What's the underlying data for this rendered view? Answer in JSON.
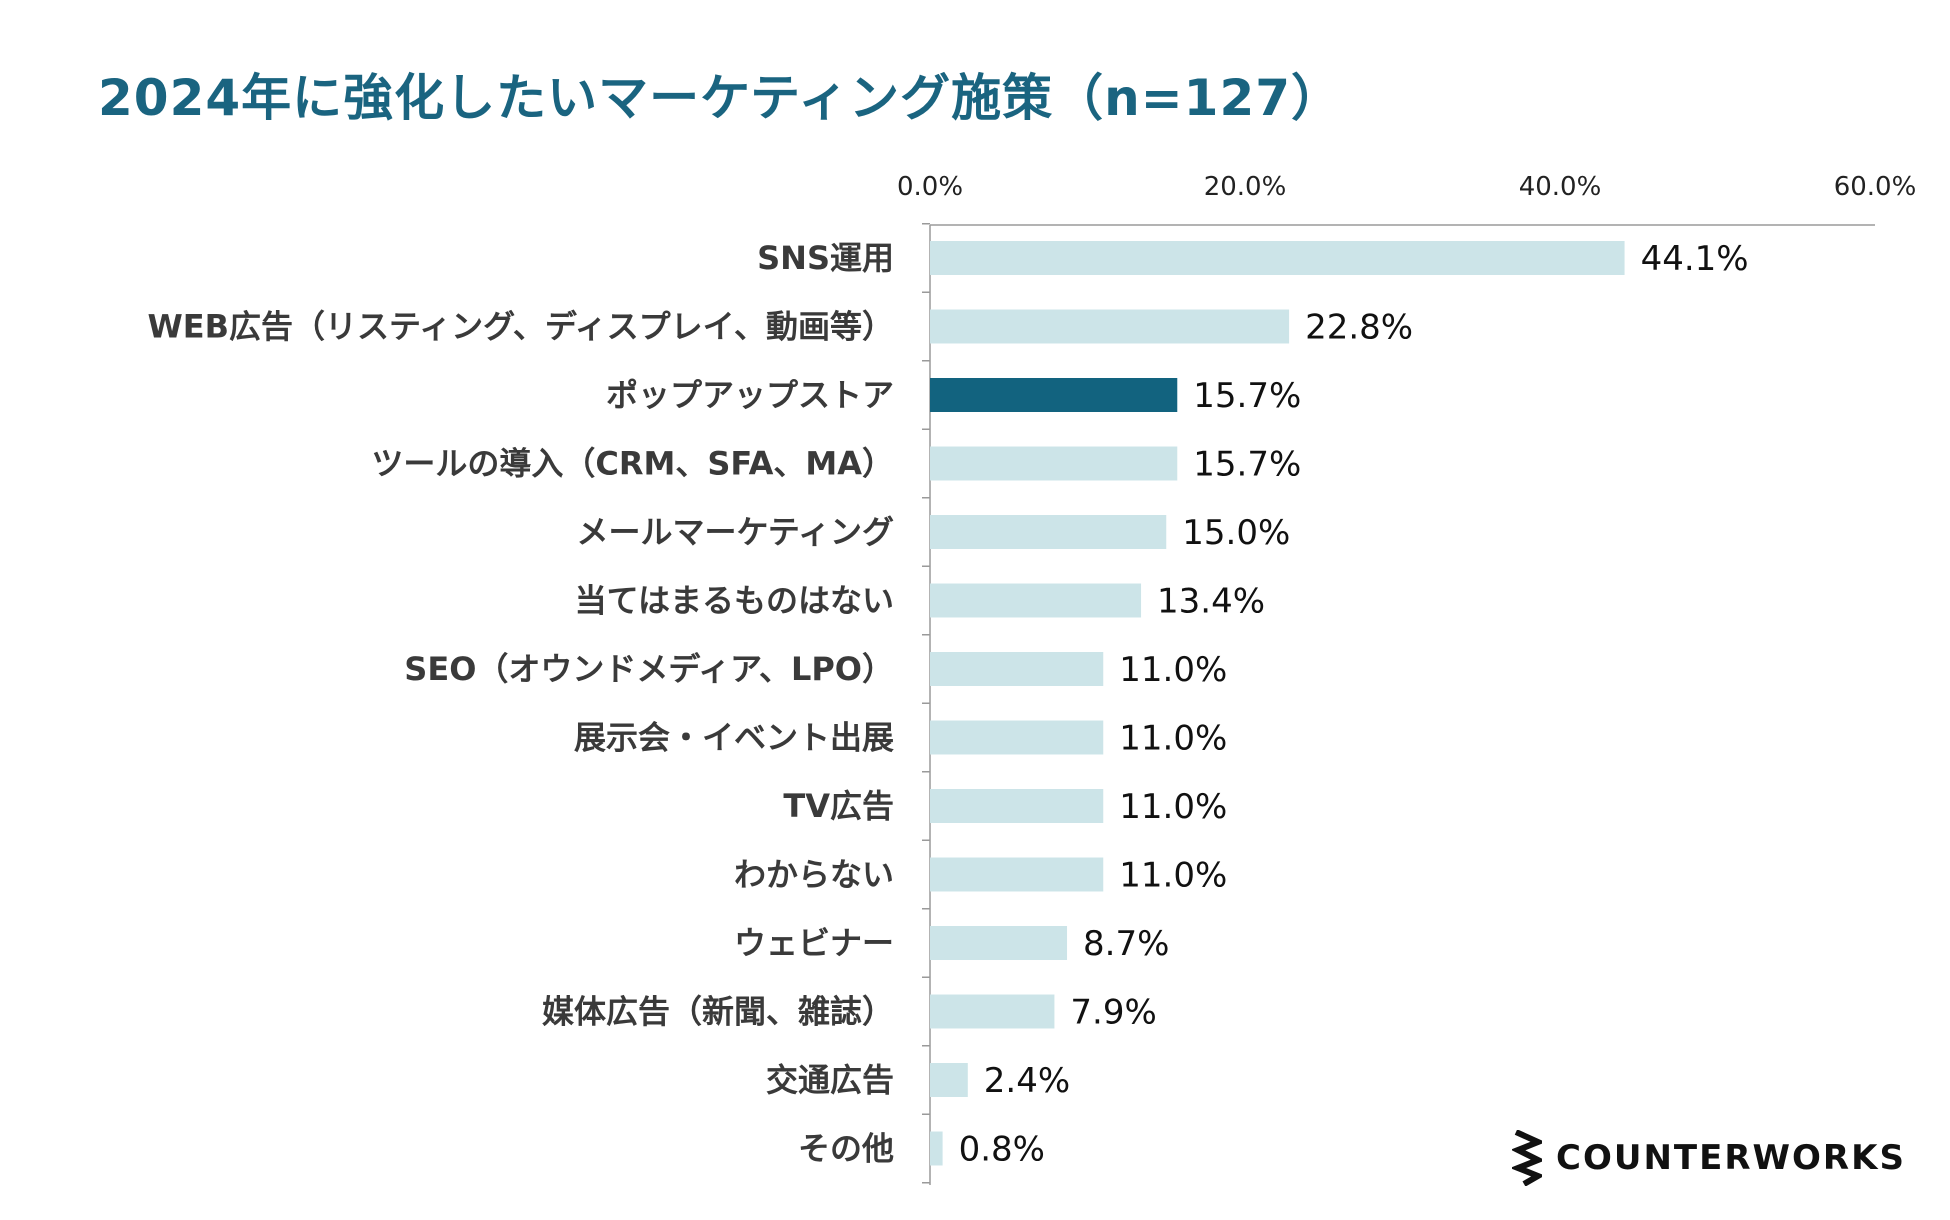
{
  "chart_data": {
    "type": "bar",
    "orientation": "horizontal",
    "title": "2024年に強化したいマーケティング施策（n=127）",
    "xlabel": "",
    "ylabel": "",
    "xlim": [
      0,
      60
    ],
    "x_ticks": [
      0,
      20,
      40,
      60
    ],
    "x_tick_labels": [
      "0.0%",
      "20.0%",
      "40.0%",
      "60.0%"
    ],
    "x_axis_position": "top",
    "grid": false,
    "legend": "none",
    "categories": [
      "SNS運用",
      "WEB広告（リスティング、ディスプレイ、動画等）",
      "ポップアップストア",
      "ツールの導入（CRM、SFA、MA）",
      "メールマーケティング",
      "当てはまるものはない",
      "SEO（オウンドメディア、LPO）",
      "展示会・イベント出展",
      "TV広告",
      "わからない",
      "ウェビナー",
      "媒体広告（新聞、雑誌）",
      "交通広告",
      "その他"
    ],
    "values": [
      44.1,
      22.8,
      15.7,
      15.7,
      15.0,
      13.4,
      11.0,
      11.0,
      11.0,
      11.0,
      8.7,
      7.9,
      2.4,
      0.8
    ],
    "value_labels": [
      "44.1%",
      "22.8%",
      "15.7%",
      "15.7%",
      "15.0%",
      "13.4%",
      "11.0%",
      "11.0%",
      "11.0%",
      "11.0%",
      "8.7%",
      "7.9%",
      "2.4%",
      "0.8%"
    ],
    "highlight_index": 2,
    "colors": {
      "bar": "#cce4e8",
      "highlight": "#12637f",
      "title": "#1a6480",
      "axis": "#9a9a9a"
    }
  },
  "brand": {
    "name": "COUNTERWORKS",
    "icon": "zigzag-logo-icon"
  }
}
